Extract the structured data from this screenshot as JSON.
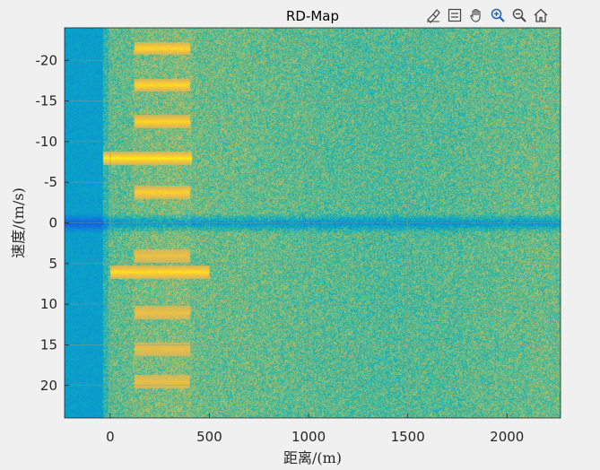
{
  "toolbar": {
    "buttons": [
      {
        "name": "brush-icon"
      },
      {
        "name": "datatip-icon"
      },
      {
        "name": "pan-hand-icon"
      },
      {
        "name": "zoom-in-icon"
      },
      {
        "name": "zoom-out-icon"
      },
      {
        "name": "home-icon"
      }
    ]
  },
  "chart_data": {
    "type": "heatmap",
    "title": "RD-Map",
    "xlabel": "距离/(m)",
    "ylabel": "速度/(m/s)",
    "xlim": [
      -230,
      2270
    ],
    "ylim": [
      -24,
      24
    ],
    "y_reversed": true,
    "xticks": [
      0,
      500,
      1000,
      1500,
      2000
    ],
    "yticks": [
      -20,
      -15,
      -10,
      -5,
      0,
      5,
      10,
      15,
      20
    ],
    "grid": true,
    "colormap": "parula",
    "colors": {
      "background": "#f0f0f0",
      "plot_base": "#3db29a",
      "left_strip": "#19a6dd",
      "zero_doppler": "#1e8ee6",
      "target": "#f4c531",
      "target_peak": "#fde43a",
      "grid": "#8aa08a"
    },
    "features": {
      "clutter_strip_range": [
        -230,
        -40
      ],
      "zero_doppler_velocity": 0,
      "target_rows": [
        {
          "velocity": -21.5,
          "range": [
            120,
            400
          ],
          "intensity": 0.8
        },
        {
          "velocity": -17.0,
          "range": [
            120,
            400
          ],
          "intensity": 0.85
        },
        {
          "velocity": -12.5,
          "range": [
            120,
            400
          ],
          "intensity": 0.8
        },
        {
          "velocity": -8.0,
          "range": [
            -40,
            410
          ],
          "intensity": 1.0
        },
        {
          "velocity": -3.8,
          "range": [
            120,
            400
          ],
          "intensity": 0.75
        },
        {
          "velocity": 6.0,
          "range": [
            0,
            500
          ],
          "intensity": 0.9
        },
        {
          "velocity": 4.0,
          "range": [
            120,
            400
          ],
          "intensity": 0.45
        },
        {
          "velocity": 11.0,
          "range": [
            120,
            400
          ],
          "intensity": 0.45
        },
        {
          "velocity": 15.5,
          "range": [
            120,
            400
          ],
          "intensity": 0.4
        },
        {
          "velocity": 19.5,
          "range": [
            120,
            400
          ],
          "intensity": 0.4
        }
      ],
      "target_block_range": [
        110,
        410
      ]
    }
  }
}
